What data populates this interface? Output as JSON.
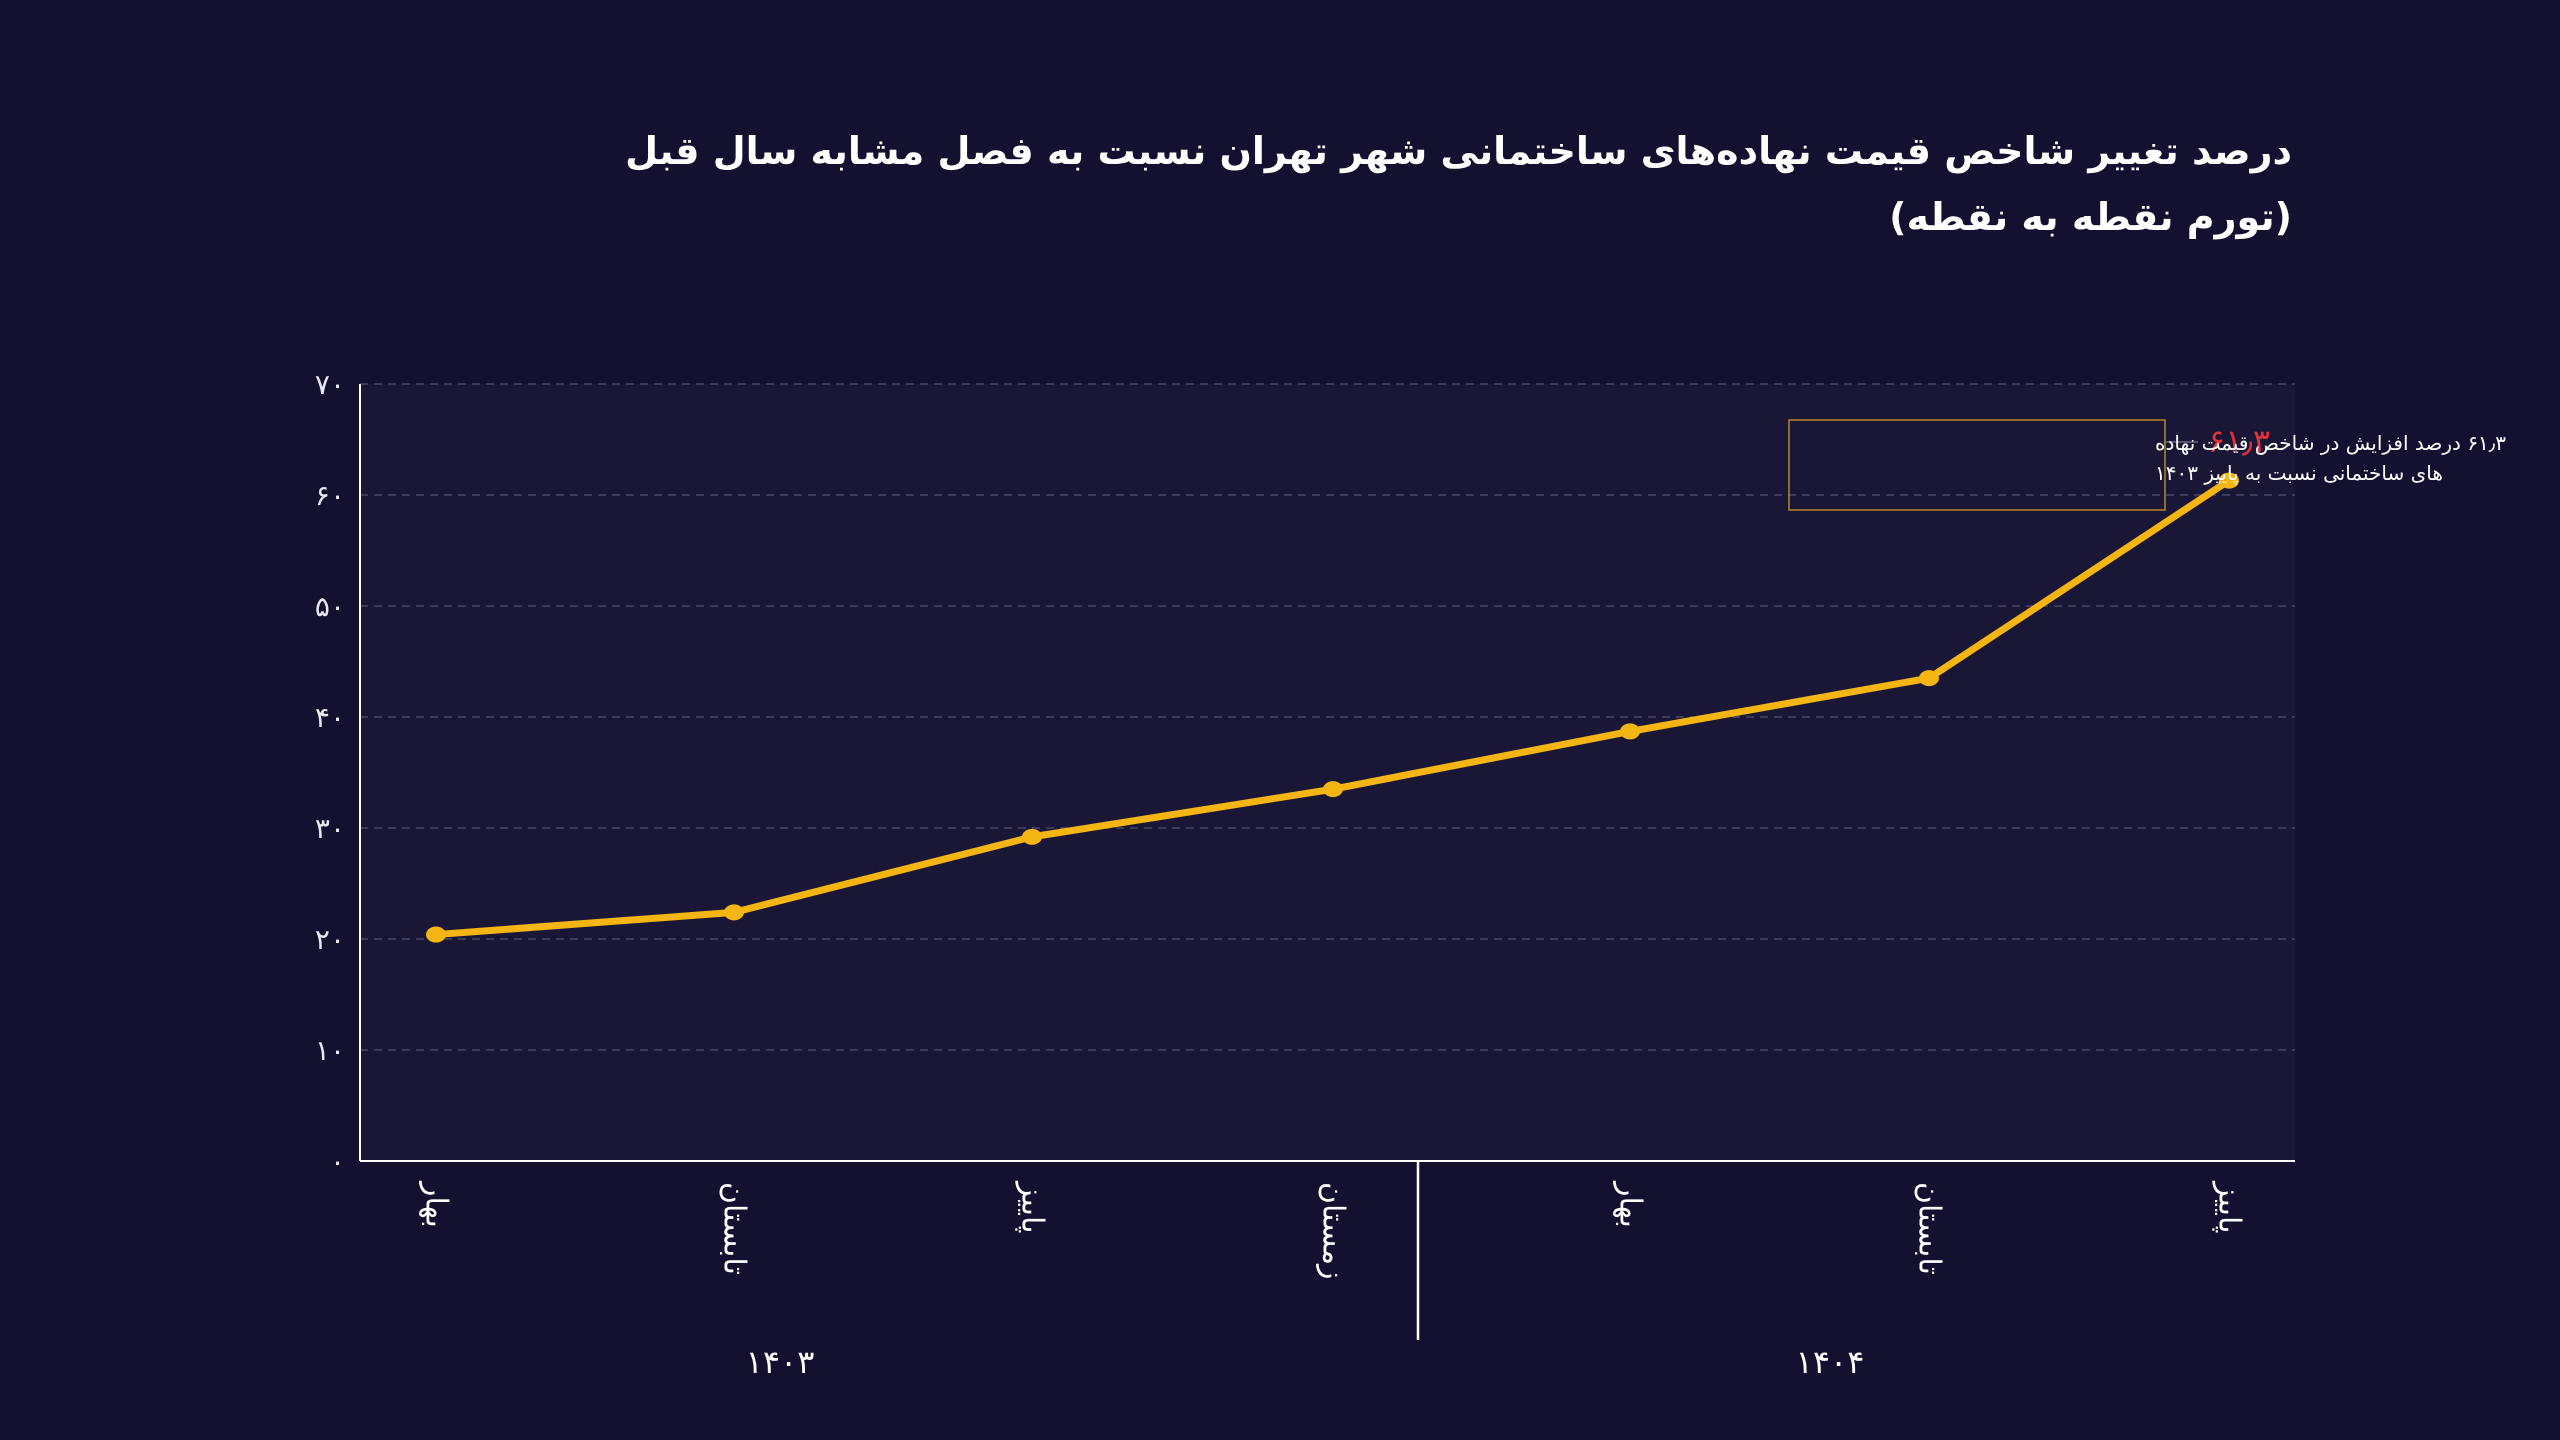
{
  "title": "درصد تغییر شاخص قیمت نهاده‌های ساختمانی شهر تهران نسبت به فصل مشابه سال قبل",
  "subtitle": "(تورم نقطه به نقطه)",
  "colors": {
    "background": "#141130",
    "plot_background": "#1a1736",
    "line": "#f5b512",
    "highlight_label": "#e0323c",
    "annotation_border": "#b8862a",
    "grid": "#4a4766",
    "axis": "#ffffff"
  },
  "chart_data": {
    "type": "line",
    "y_ticks": [
      "۰",
      "۱۰",
      "۲۰",
      "۳۰",
      "۴۰",
      "۵۰",
      "۶۰",
      "۷۰"
    ],
    "ylim": [
      0,
      70
    ],
    "grid": true,
    "categories": [
      "بهار",
      "تابستان",
      "پاییز",
      "زمستان",
      "بهار",
      "تابستان",
      "پاییز"
    ],
    "groups": [
      {
        "label": "۱۴۰۳",
        "categories": [
          "بهار",
          "تابستان",
          "پاییز",
          "زمستان"
        ]
      },
      {
        "label": "۱۴۰۴",
        "categories": [
          "بهار",
          "تابستان",
          "پاییز"
        ]
      }
    ],
    "series": [
      {
        "values": [
          20.4,
          22.4,
          29.2,
          33.5,
          38.7,
          43.5,
          61.3
        ]
      }
    ],
    "highlight": {
      "index": 6,
      "label": "۶۱٫۳",
      "annotation_lines": [
        "۶۱٫۳ درصد افزایش در شاخص قیمت نهاده",
        "های ساختمانی نسبت به پاییز ۱۴۰۳"
      ]
    }
  }
}
